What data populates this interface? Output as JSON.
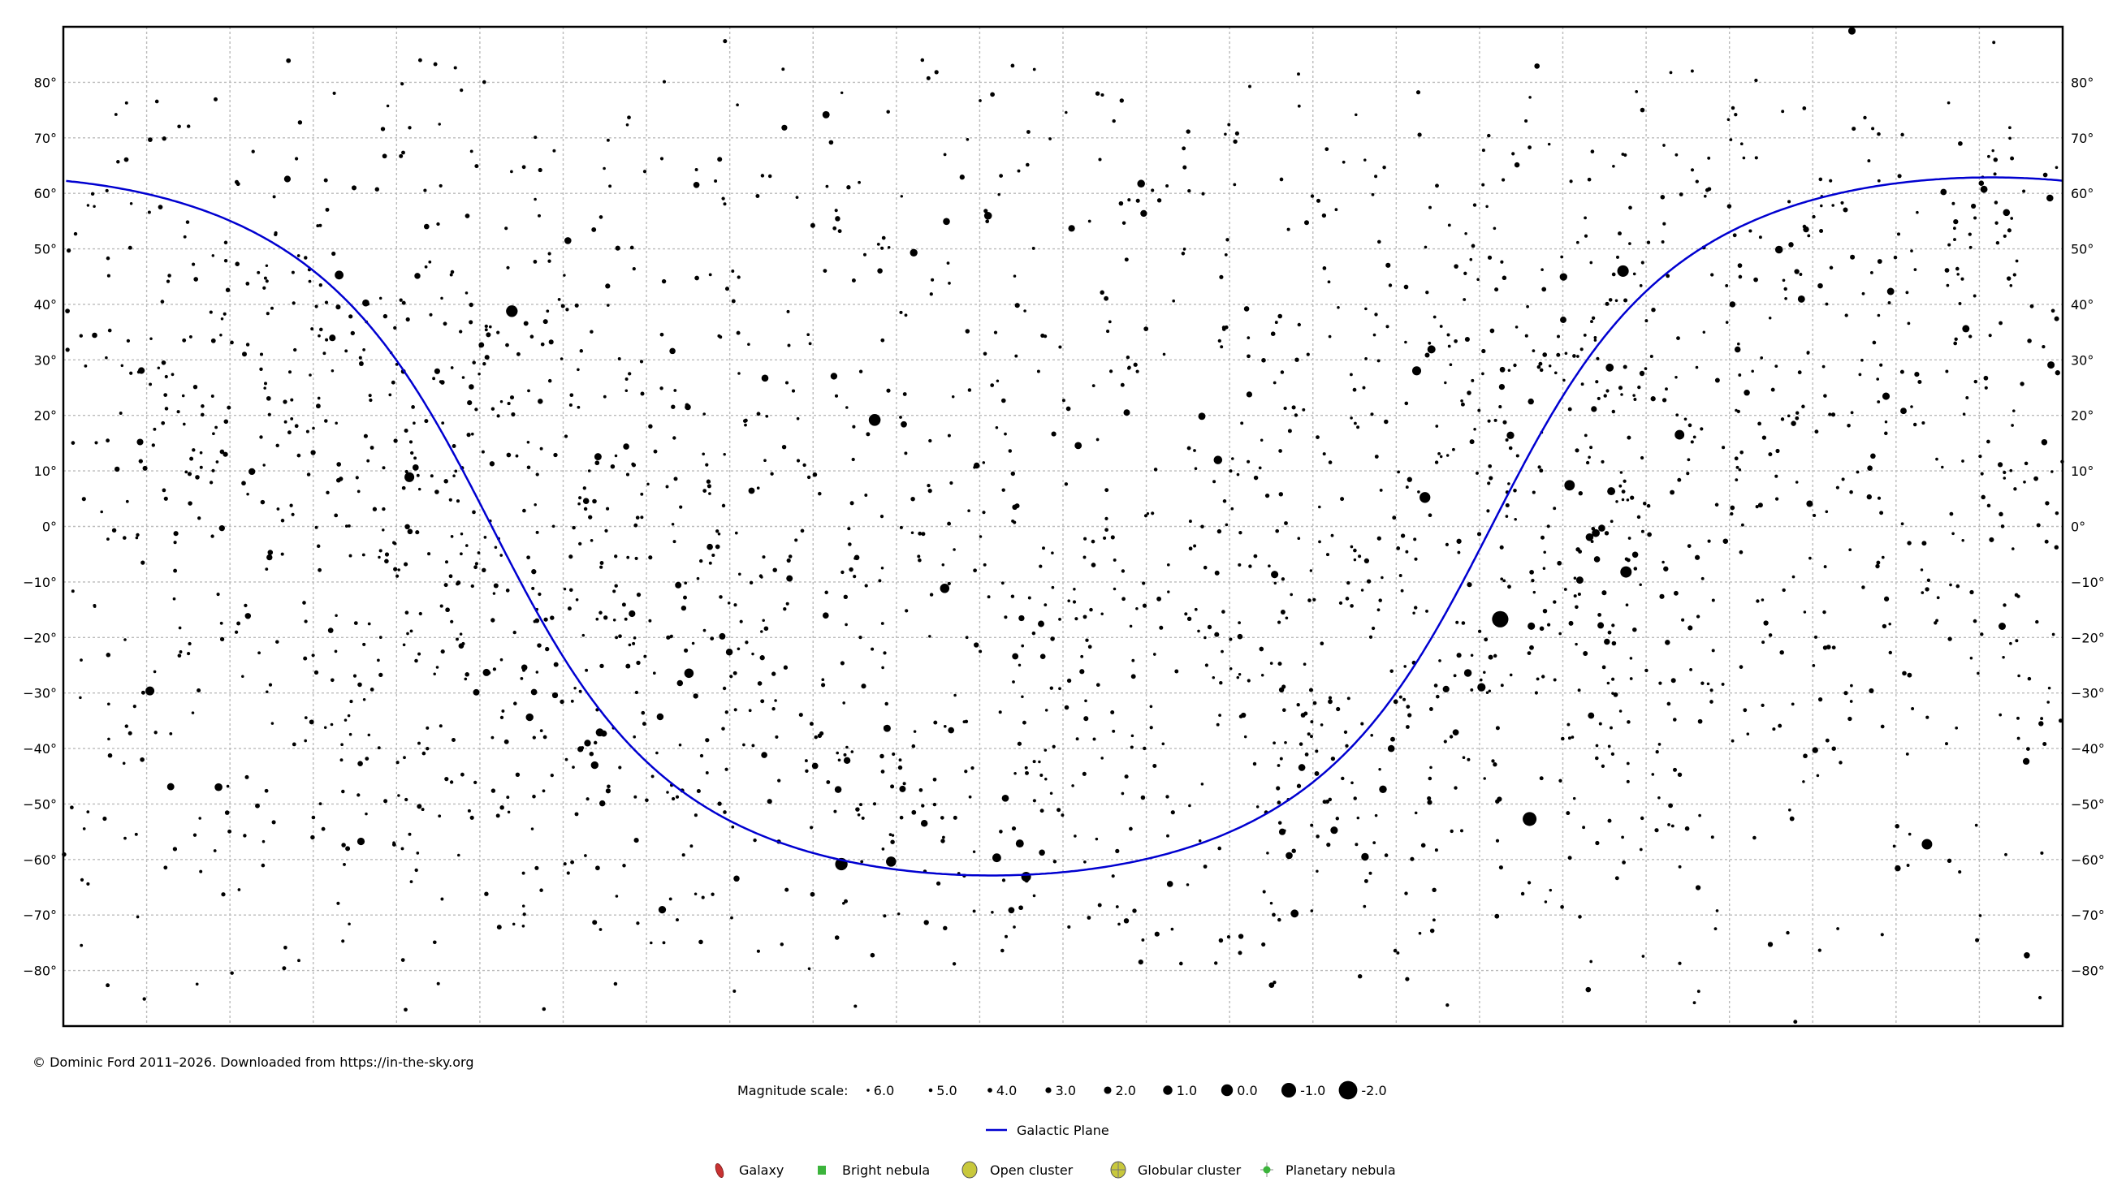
{
  "chart_data": {
    "type": "scatter",
    "title": "",
    "xlabel": "",
    "ylabel": "",
    "x_axis": {
      "quantity": "right ascension (hours)",
      "range": [
        24,
        0
      ],
      "direction": "decreasing to the right",
      "grid_step": 1,
      "tick_labels_shown": false
    },
    "y_axis": {
      "range": [
        -90,
        90
      ],
      "grid_step": 10,
      "tick_labels": [
        "80°",
        "70°",
        "60°",
        "50°",
        "40°",
        "30°",
        "20°",
        "10°",
        "0°",
        "−10°",
        "−20°",
        "−30°",
        "−40°",
        "−50°",
        "−60°",
        "−70°",
        "−80°"
      ],
      "tick_values": [
        80,
        70,
        60,
        50,
        40,
        30,
        20,
        10,
        0,
        -10,
        -20,
        -30,
        -40,
        -50,
        -60,
        -70,
        -80
      ]
    },
    "grid": true,
    "galactic_plane": {
      "label": "Galactic Plane",
      "color": "#0000d0"
    },
    "star_color": "#000000",
    "stars_columns": [
      "ra_hours",
      "dec_deg",
      "magnitude"
    ],
    "stars": [
      [
        6.752,
        -16.72,
        -1.46
      ],
      [
        6.399,
        -52.7,
        -0.74
      ],
      [
        14.261,
        19.18,
        -0.05
      ],
      [
        14.66,
        -60.83,
        -0.27
      ],
      [
        18.616,
        38.78,
        0.03
      ],
      [
        5.278,
        46.0,
        0.08
      ],
      [
        5.242,
        -8.2,
        0.13
      ],
      [
        7.655,
        5.22,
        0.34
      ],
      [
        1.629,
        -57.24,
        0.46
      ],
      [
        5.919,
        7.41,
        0.5
      ],
      [
        14.064,
        -60.37,
        0.61
      ],
      [
        19.846,
        8.87,
        0.76
      ],
      [
        12.443,
        -63.1,
        0.77
      ],
      [
        4.599,
        16.51,
        0.85
      ],
      [
        16.49,
        -26.43,
        0.96
      ],
      [
        13.42,
        -11.16,
        0.97
      ],
      [
        7.755,
        28.03,
        1.14
      ],
      [
        22.961,
        -29.62,
        1.16
      ],
      [
        20.69,
        45.28,
        1.25
      ],
      [
        12.795,
        -59.69,
        1.25
      ],
      [
        10.14,
        11.97,
        1.35
      ],
      [
        6.977,
        -28.97,
        1.5
      ],
      [
        7.577,
        31.89,
        1.58
      ],
      [
        12.519,
        -57.11,
        1.63
      ],
      [
        17.56,
        -37.1,
        1.62
      ],
      [
        5.419,
        6.35,
        1.64
      ],
      [
        5.438,
        28.61,
        1.65
      ],
      [
        9.22,
        -69.72,
        1.68
      ],
      [
        5.604,
        -1.2,
        1.69
      ],
      [
        22.137,
        -46.96,
        1.74
      ],
      [
        5.679,
        -1.94,
        1.77
      ],
      [
        12.9,
        55.96,
        1.77
      ],
      [
        11.062,
        61.75,
        1.79
      ],
      [
        3.405,
        49.86,
        1.79
      ],
      [
        7.14,
        -26.39,
        1.83
      ],
      [
        17.622,
        -43.0,
        1.86
      ],
      [
        18.403,
        -34.38,
        1.85
      ],
      [
        8.375,
        -59.51,
        1.86
      ],
      [
        13.792,
        49.31,
        1.86
      ],
      [
        5.992,
        44.95,
        1.9
      ],
      [
        16.811,
        -69.03,
        1.91
      ],
      [
        6.629,
        16.4,
        1.92
      ],
      [
        20.427,
        -56.74,
        1.94
      ],
      [
        8.745,
        -54.71,
        1.96
      ],
      [
        6.378,
        -17.96,
        1.98
      ],
      [
        9.46,
        -8.66,
        1.98
      ],
      [
        2.53,
        89.26,
        1.98
      ],
      [
        2.12,
        23.46,
        2.0
      ],
      [
        10.333,
        19.84,
        2.08
      ],
      [
        0.726,
        -17.99,
        2.04
      ],
      [
        18.921,
        -26.3,
        2.05
      ],
      [
        14.111,
        -36.37,
        2.06
      ],
      [
        0.14,
        29.09,
        2.06
      ],
      [
        1.162,
        35.62,
        2.05
      ],
      [
        5.796,
        -9.67,
        2.07
      ],
      [
        14.845,
        74.16,
        2.08
      ],
      [
        17.582,
        12.56,
        2.08
      ],
      [
        3.136,
        40.96,
        2.1
      ],
      [
        2.065,
        42.33,
        2.1
      ],
      [
        11.818,
        14.57,
        2.13
      ],
      [
        22.711,
        -46.88,
        2.1
      ],
      [
        12.692,
        -48.96,
        2.2
      ],
      [
        9.285,
        -59.28,
        2.21
      ],
      [
        9.133,
        -43.43,
        2.21
      ],
      [
        15.578,
        26.71,
        2.22
      ],
      [
        13.399,
        54.93,
        2.23
      ],
      [
        20.37,
        40.26,
        2.23
      ],
      [
        0.675,
        56.54,
        2.24
      ],
      [
        17.943,
        51.49,
        2.24
      ],
      [
        5.533,
        -0.3,
        2.25
      ],
      [
        0.153,
        59.15,
        2.28
      ],
      [
        8.06,
        -40.0,
        2.25
      ],
      [
        16.006,
        -22.62,
        2.29
      ],
      [
        16.836,
        -34.29,
        2.29
      ],
      [
        14.699,
        -47.39,
        2.3
      ],
      [
        14.592,
        -42.16,
        2.33
      ],
      [
        11.031,
        56.38,
        2.37
      ],
      [
        14.75,
        27.07,
        2.37
      ],
      [
        21.736,
        9.88,
        2.38
      ],
      [
        17.708,
        -39.03,
        2.39
      ],
      [
        0.438,
        -42.31,
        2.39
      ],
      [
        11.897,
        53.69,
        2.44
      ],
      [
        17.173,
        -15.72,
        2.43
      ],
      [
        23.063,
        28.08,
        2.42
      ],
      [
        7.402,
        -29.3,
        2.45
      ],
      [
        21.31,
        62.59,
        2.45
      ],
      [
        9.368,
        -55.01,
        2.47
      ],
      [
        20.77,
        33.97,
        2.48
      ],
      [
        23.079,
        15.21,
        2.49
      ],
      [
        3.038,
        4.09,
        2.53
      ],
      [
        11.235,
        20.52,
        2.56
      ],
      [
        16.09,
        -19.8,
        2.56
      ],
      [
        5.546,
        -17.82,
        2.58
      ],
      [
        12.263,
        -17.54,
        2.59
      ],
      [
        19.043,
        -29.88,
        2.6
      ],
      [
        15.283,
        -9.38,
        2.61
      ],
      [
        15.738,
        6.43,
        2.63
      ],
      [
        1.911,
        20.81,
        2.64
      ],
      [
        5.661,
        -34.07,
        2.65
      ],
      [
        12.573,
        -23.4,
        2.65
      ],
      [
        1.43,
        60.24,
        2.68
      ],
      [
        13.911,
        18.4,
        2.68
      ],
      [
        5.59,
        -5.91,
        2.77
      ],
      [
        16.504,
        21.49,
        2.77
      ],
      [
        17.725,
        4.57,
        2.77
      ],
      [
        17.244,
        14.39,
        2.78
      ],
      [
        14.848,
        -16.04,
        2.75
      ],
      [
        12.498,
        -16.52,
        2.94
      ],
      [
        19.771,
        10.61,
        2.72
      ],
      [
        13.036,
        10.96,
        2.83
      ],
      [
        18.097,
        -30.42,
        2.98
      ],
      [
        21.784,
        -16.13,
        2.87
      ],
      [
        21.526,
        -5.57,
        2.9
      ],
      [
        22.096,
        -0.32,
        2.95
      ],
      [
        3.791,
        24.1,
        2.87
      ],
      [
        6.732,
        25.13,
        2.98
      ],
      [
        6.383,
        22.51,
        2.88
      ],
      [
        19.512,
        27.96,
        3.05
      ],
      [
        8.159,
        -47.34,
        1.83
      ],
      [
        17.53,
        -49.88,
        2.84
      ],
      [
        15.919,
        -63.43,
        2.85
      ],
      [
        1.98,
        -61.57,
        2.86
      ],
      [
        0.43,
        -77.25,
        2.8
      ],
      [
        12.252,
        -58.75,
        2.79
      ],
      [
        10.716,
        -64.39,
        2.76
      ],
      [
        7.286,
        -37.1,
        2.7
      ],
      [
        16.4,
        61.51,
        2.73
      ],
      [
        15.345,
        71.83,
        3.0
      ],
      [
        0.945,
        60.72,
        2.15
      ],
      [
        3.08,
        53.5,
        2.9
      ],
      [
        3.964,
        40.01,
        2.88
      ],
      [
        3.902,
        31.88,
        2.85
      ],
      [
        5.995,
        37.21,
        2.6
      ],
      [
        5.627,
        21.14,
        3.0
      ],
      [
        9.764,
        23.77,
        2.98
      ],
      [
        16.619,
        -10.57,
        2.56
      ],
      [
        16.239,
        -3.69,
        2.73
      ],
      [
        0.22,
        15.18,
        2.83
      ],
      [
        19.75,
        45.13,
        2.87
      ],
      [
        18.35,
        -29.83,
        2.7
      ],
      [
        18.466,
        -25.42,
        2.81
      ],
      [
        16.598,
        -28.22,
        2.82
      ],
      [
        17.513,
        -37.3,
        2.69
      ],
      [
        17.793,
        -40.13,
        3.0
      ],
      [
        14.976,
        -43.13,
        2.68
      ],
      [
        15.586,
        -41.17,
        2.78
      ],
      [
        13.665,
        -53.47,
        2.3
      ],
      [
        13.926,
        -47.29,
        2.55
      ],
      [
        13.343,
        -36.71,
        2.75
      ],
      [
        12.62,
        -69.14,
        2.69
      ],
      [
        5.131,
        -5.09,
        2.79
      ],
      [
        2.971,
        -40.3,
        2.9
      ],
      [
        5.471,
        -20.76,
        2.84
      ],
      [
        16.688,
        31.6,
        2.81
      ],
      [
        18.982,
        32.69,
        3.25
      ]
    ]
  },
  "footer": {
    "copyright": "© Dominic Ford 2011–2026. Downloaded from https://in-the-sky.org"
  },
  "legend": {
    "magnitude_label": "Magnitude scale:",
    "magnitudes": [
      {
        "value": 6.0,
        "label": "6.0"
      },
      {
        "value": 5.0,
        "label": "5.0"
      },
      {
        "value": 4.0,
        "label": "4.0"
      },
      {
        "value": 3.0,
        "label": "3.0"
      },
      {
        "value": 2.0,
        "label": "2.0"
      },
      {
        "value": 1.0,
        "label": "1.0"
      },
      {
        "value": 0.0,
        "label": "0.0"
      },
      {
        "value": -1.0,
        "label": "-1.0"
      },
      {
        "value": -2.0,
        "label": "-2.0"
      }
    ],
    "galactic_plane": "Galactic Plane",
    "objects": [
      {
        "label": "Galaxy",
        "icon": "galaxy-icon",
        "color": "#c83232"
      },
      {
        "label": "Bright nebula",
        "icon": "bright-nebula-icon",
        "color": "#3cb43c"
      },
      {
        "label": "Open cluster",
        "icon": "open-cluster-icon",
        "color": "#c8c83c"
      },
      {
        "label": "Globular cluster",
        "icon": "globular-cluster-icon",
        "color": "#c8c83c"
      },
      {
        "label": "Planetary nebula",
        "icon": "planetary-nebula-icon",
        "color": "#3cb43c"
      }
    ]
  }
}
